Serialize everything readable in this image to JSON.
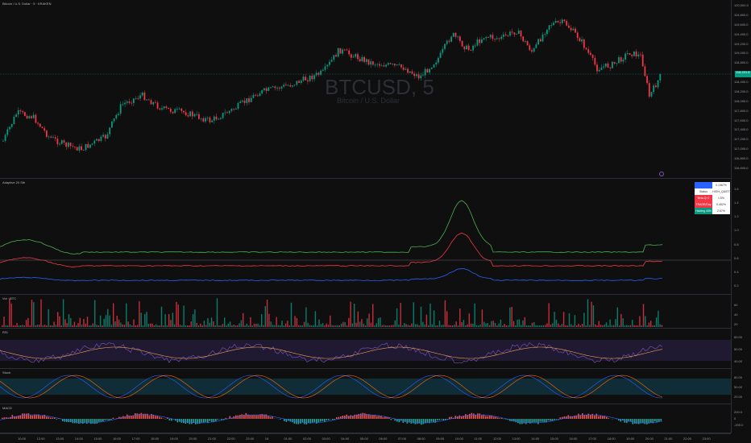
{
  "symbol": "Bitcoin / U.S. Dollar · 5 · KRAKEN",
  "watermark": {
    "ticker": "BTCUSD, 5",
    "name": "Bitcoin / U.S. Dollar"
  },
  "last_price": "118,431.8",
  "main_axis": [
    "120,000.0",
    "119,800.0",
    "119,600.0",
    "119,400.0",
    "119,200.0",
    "119,000.0",
    "118,800.0",
    "118,600.0",
    "118,400.0",
    "118,200.0",
    "118,000.0",
    "117,800.0",
    "117,600.0",
    "117,400.0",
    "117,200.0",
    "117,000.0",
    "116,800.0",
    "116,600.0"
  ],
  "panes": {
    "adaptive": {
      "title": "Adaptive 20 Sth",
      "axis": [
        "1.6",
        "1.4",
        "1.2",
        "1.0",
        "0.8",
        "0.6",
        "0.4",
        "0.2"
      ]
    },
    "vol": {
      "title": "Vol · BTC",
      "axis": [
        "60",
        "40",
        "20"
      ]
    },
    "rsi": {
      "title": "RSI",
      "axis": [
        "60.00",
        "50.00",
        "40.00"
      ]
    },
    "stoch": {
      "title": "Stoch",
      "axis": [
        "80.00",
        "50.00",
        "20.00"
      ]
    },
    "macd": {
      "title": "MACD",
      "axis": [
        "200.0",
        "0",
        "-200.0"
      ]
    }
  },
  "table": [
    {
      "k": "",
      "v": "0.1967%",
      "color": "#2962ff"
    },
    {
      "k": "Status",
      "v": "HIGH_QUIET",
      "color": "#ffffff"
    },
    {
      "k": "Beta Q: 0",
      "v": "1.5%",
      "color": "#f23645"
    },
    {
      "k": "TRADE/Day",
      "v": "0.452%",
      "color": "#f23645"
    },
    {
      "k": "Holding 40%",
      "v": "2.67%",
      "color": "#089981"
    }
  ],
  "time_axis": [
    "10:00",
    "12:00",
    "13:00",
    "14:00",
    "15:00",
    "16:00",
    "17:00",
    "18:00",
    "19:00",
    "20:00",
    "21:00",
    "22:00",
    "23:00",
    "16",
    "01:00",
    "02:00",
    "03:00",
    "04:00",
    "05:00",
    "06:00",
    "07:00",
    "08:00",
    "09:00",
    "10:00",
    "11:00",
    "12:00",
    "13:00",
    "14:00",
    "15:00",
    "16:00",
    "17:00",
    "18:00",
    "19:00",
    "20:00",
    "21:00",
    "22:00",
    "23:00"
  ],
  "colors": {
    "up": "#089981",
    "down": "#f23645",
    "bg": "#0f0f0f"
  }
}
